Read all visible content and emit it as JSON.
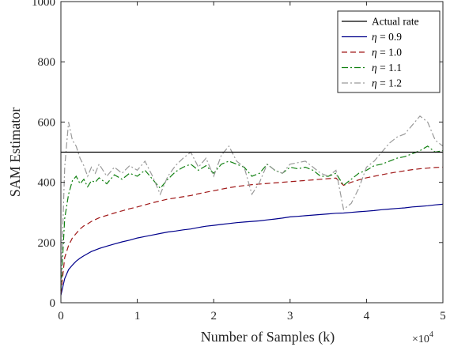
{
  "chart_data": {
    "type": "line",
    "title": "",
    "xlabel": "Number of Samples (k)",
    "ylabel": "SAM Estimator",
    "x_multiplier_base": "×10",
    "x_multiplier_exp": "4",
    "xlim": [
      0,
      5
    ],
    "ylim": [
      0,
      1000
    ],
    "xticks": [
      "0",
      "1",
      "2",
      "3",
      "4",
      "5"
    ],
    "yticks": [
      "0",
      "200",
      "400",
      "600",
      "800",
      "1000"
    ],
    "grid": false,
    "legend_position": "top-right",
    "x": [
      0,
      0.05,
      0.1,
      0.15,
      0.2,
      0.25,
      0.3,
      0.35,
      0.4,
      0.45,
      0.5,
      0.6,
      0.7,
      0.8,
      0.9,
      1.0,
      1.1,
      1.2,
      1.3,
      1.4,
      1.5,
      1.6,
      1.7,
      1.8,
      1.9,
      2.0,
      2.1,
      2.2,
      2.3,
      2.4,
      2.5,
      2.6,
      2.7,
      2.8,
      2.9,
      3.0,
      3.1,
      3.2,
      3.3,
      3.4,
      3.5,
      3.6,
      3.7,
      3.8,
      3.9,
      4.0,
      4.1,
      4.2,
      4.3,
      4.4,
      4.5,
      4.6,
      4.7,
      4.8,
      4.9,
      5.0
    ],
    "series": [
      {
        "name": "Actual rate",
        "color": "#000000",
        "dash": "solid",
        "values": [
          500,
          500,
          500,
          500,
          500,
          500,
          500,
          500,
          500,
          500,
          500,
          500,
          500,
          500,
          500,
          500,
          500,
          500,
          500,
          500,
          500,
          500,
          500,
          500,
          500,
          500,
          500,
          500,
          500,
          500,
          500,
          500,
          500,
          500,
          500,
          500,
          500,
          500,
          500,
          500,
          500,
          500,
          500,
          500,
          500,
          500,
          500,
          500,
          500,
          500,
          500,
          500,
          500,
          500,
          500,
          500
        ]
      },
      {
        "name": "0.9",
        "color": "#00008b",
        "dash": "solid",
        "values": [
          25,
          80,
          110,
          125,
          138,
          148,
          156,
          163,
          170,
          175,
          180,
          188,
          195,
          202,
          208,
          215,
          220,
          225,
          230,
          235,
          238,
          242,
          245,
          250,
          254,
          257,
          260,
          263,
          266,
          268,
          270,
          272,
          275,
          278,
          281,
          285,
          287,
          289,
          291,
          293,
          295,
          297,
          298,
          300,
          302,
          304,
          306,
          309,
          311,
          313,
          315,
          318,
          320,
          322,
          325,
          327
        ]
      },
      {
        "name": "1.0",
        "color": "#a01818",
        "dash": "dashed",
        "values": [
          30,
          150,
          190,
          215,
          230,
          245,
          255,
          262,
          270,
          276,
          282,
          290,
          298,
          305,
          312,
          318,
          325,
          332,
          338,
          344,
          348,
          352,
          356,
          362,
          367,
          372,
          377,
          382,
          386,
          389,
          392,
          394,
          396,
          398,
          400,
          402,
          404,
          406,
          408,
          410,
          412,
          414,
          390,
          400,
          408,
          415,
          420,
          425,
          430,
          434,
          438,
          442,
          445,
          447,
          449,
          450
        ]
      },
      {
        "name": "1.1",
        "color": "#108010",
        "dash": "dashdot",
        "values": [
          40,
          280,
          360,
          405,
          420,
          395,
          410,
          385,
          405,
          400,
          415,
          395,
          425,
          410,
          430,
          420,
          440,
          410,
          380,
          410,
          435,
          450,
          460,
          440,
          455,
          430,
          460,
          470,
          460,
          450,
          420,
          430,
          460,
          440,
          430,
          450,
          445,
          450,
          440,
          420,
          420,
          430,
          390,
          410,
          430,
          440,
          455,
          460,
          470,
          480,
          485,
          495,
          505,
          520,
          500,
          505
        ]
      },
      {
        "name": "1.2",
        "color": "#9a9a9a",
        "dash": "dashdot",
        "values": [
          50,
          450,
          600,
          540,
          520,
          480,
          455,
          420,
          450,
          430,
          460,
          420,
          450,
          430,
          455,
          440,
          470,
          420,
          360,
          420,
          455,
          480,
          500,
          450,
          480,
          420,
          490,
          520,
          470,
          450,
          360,
          400,
          460,
          440,
          430,
          460,
          465,
          470,
          450,
          430,
          420,
          440,
          310,
          330,
          380,
          450,
          470,
          500,
          530,
          550,
          560,
          590,
          620,
          600,
          540,
          520
        ]
      }
    ]
  }
}
